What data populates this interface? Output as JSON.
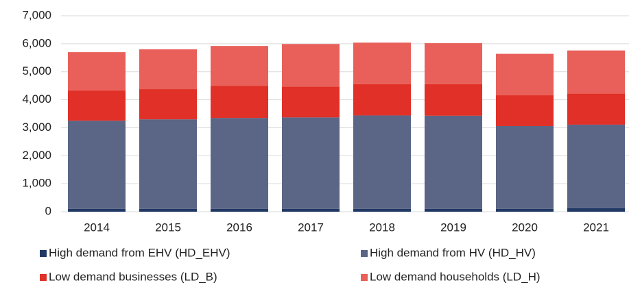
{
  "chart_data": {
    "type": "stacked_bar",
    "categories": [
      "2014",
      "2015",
      "2016",
      "2017",
      "2018",
      "2019",
      "2020",
      "2021"
    ],
    "series": [
      {
        "name": "High demand from EHV (HD_EHV)",
        "color": "#1f3864",
        "values": [
          100,
          100,
          100,
          100,
          100,
          100,
          100,
          130
        ]
      },
      {
        "name": "High demand from HV (HD_HV)",
        "color": "#5b6586",
        "values": [
          3150,
          3200,
          3250,
          3270,
          3340,
          3330,
          2960,
          2980
        ]
      },
      {
        "name": "Low demand businesses (LD_B)",
        "color": "#e03027",
        "values": [
          1080,
          1080,
          1150,
          1100,
          1120,
          1130,
          1100,
          1110
        ]
      },
      {
        "name": "Low demand households (LD_H)",
        "color": "#e9605a",
        "values": [
          1370,
          1420,
          1420,
          1520,
          1480,
          1460,
          1480,
          1540
        ]
      }
    ],
    "ylim": [
      0,
      7000
    ],
    "yticks": [
      0,
      {
        "value": 1000,
        "label": "1,000"
      },
      {
        "value": 2000,
        "label": "2,000"
      },
      {
        "value": 3000,
        "label": "3,000"
      },
      {
        "value": 4000,
        "label": "4,000"
      },
      {
        "value": 5000,
        "label": "5,000"
      },
      {
        "value": 6000,
        "label": "6,000"
      },
      {
        "value": 7000,
        "label": "7,000"
      }
    ],
    "grid": true
  }
}
